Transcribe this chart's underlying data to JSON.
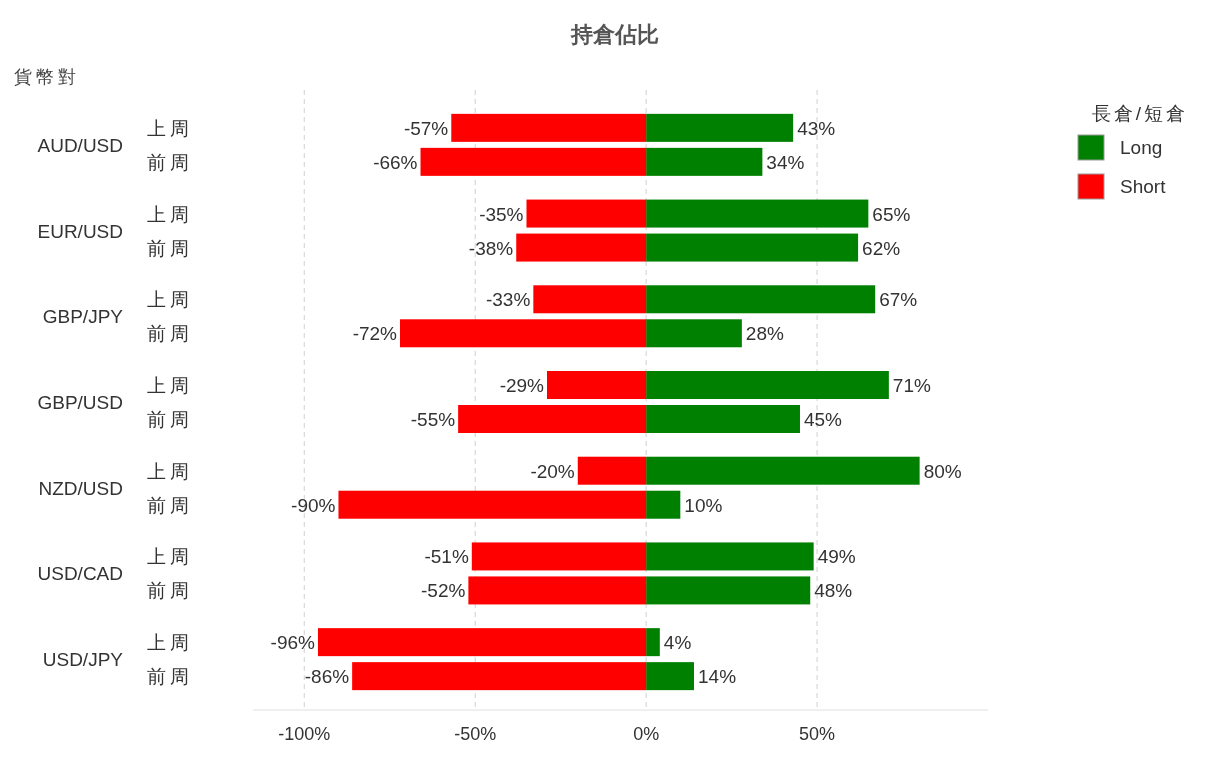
{
  "chart_data": {
    "type": "bar",
    "orientation": "horizontal",
    "stacked": true,
    "title": "持倉佔比",
    "ylabel": "貨幣對",
    "legend_title": "長倉/短倉",
    "categories": [
      "上周",
      "前周",
      "上周",
      "前周",
      "上周",
      "前周",
      "上周",
      "前周",
      "上周",
      "前周",
      "上周",
      "前周",
      "上周",
      "前周"
    ],
    "annotations": [
      "AUD/USD",
      "EUR/USD",
      "GBP/JPY",
      "GBP/USD",
      "NZD/USD",
      "USD/CAD",
      "USD/JPY"
    ],
    "series": [
      {
        "name": "Long",
        "color": "#008000",
        "values": [
          43,
          34,
          65,
          62,
          67,
          28,
          71,
          45,
          80,
          10,
          49,
          48,
          4,
          14
        ],
        "value_labels": [
          "43%",
          "34%",
          "65%",
          "62%",
          "67%",
          "28%",
          "71%",
          "45%",
          "80%",
          "10%",
          "49%",
          "48%",
          "4%",
          "14%"
        ]
      },
      {
        "name": "Short",
        "color": "#ff0000",
        "values": [
          -57,
          -66,
          -35,
          -38,
          -33,
          -72,
          -29,
          -55,
          -20,
          -90,
          -51,
          -52,
          -96,
          -86
        ],
        "value_labels": [
          "-57%",
          "-66%",
          "-35%",
          "-38%",
          "-33%",
          "-72%",
          "-29%",
          "-55%",
          "-20%",
          "-90%",
          "-51%",
          "-52%",
          "-96%",
          "-86%"
        ]
      }
    ],
    "xlim": [
      -115,
      100
    ],
    "xticks": [
      {
        "value": -100,
        "label": "-100%"
      },
      {
        "value": -50,
        "label": "-50%"
      },
      {
        "value": 0,
        "label": "0%"
      },
      {
        "value": 50,
        "label": "50%"
      }
    ],
    "grid": "x",
    "legend": "top right"
  }
}
